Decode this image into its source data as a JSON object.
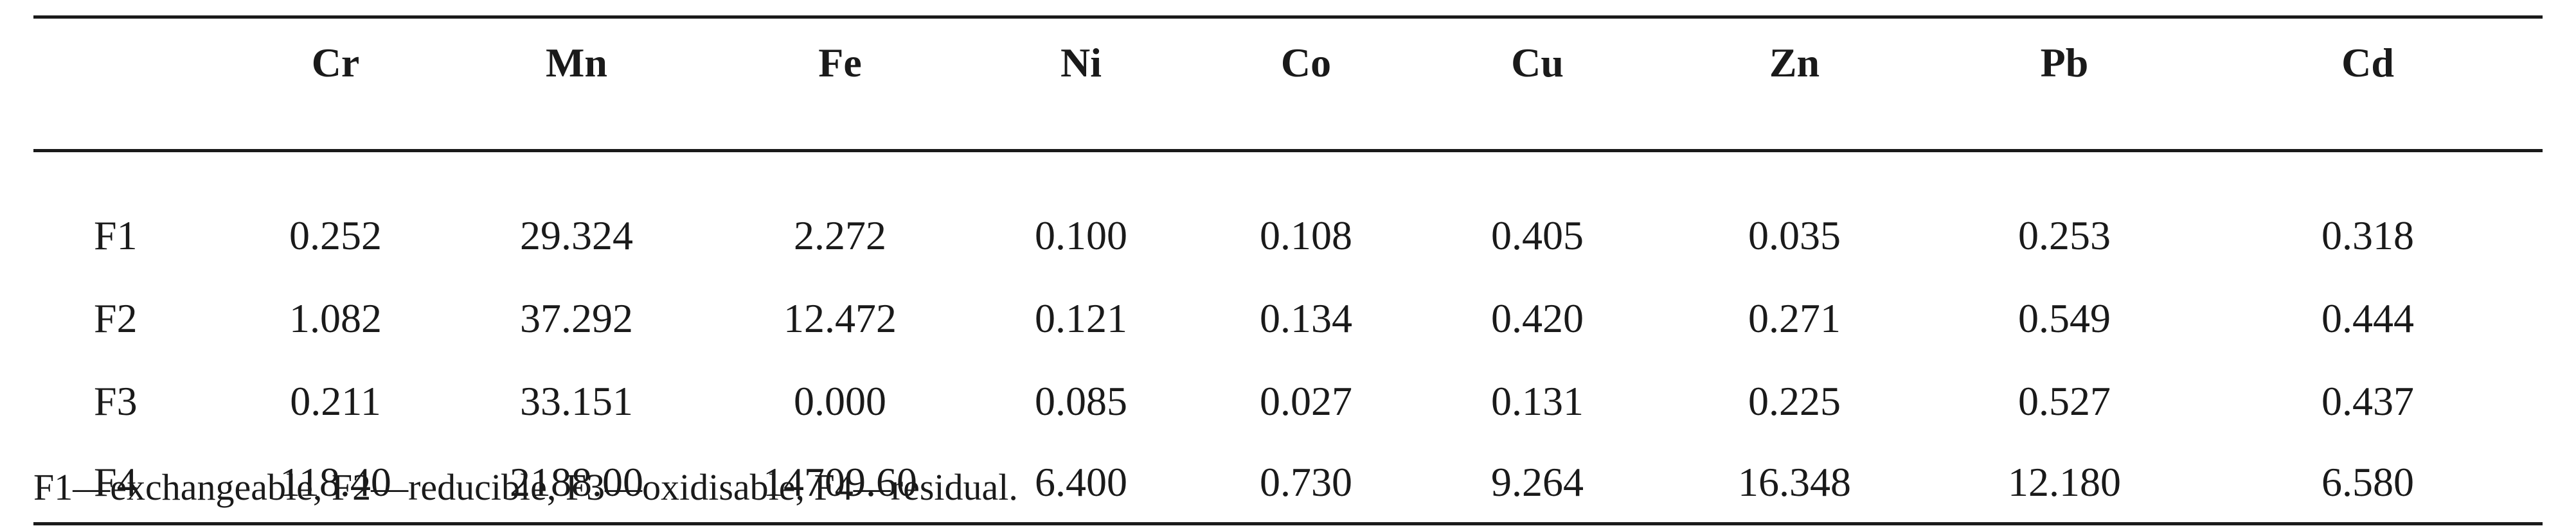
{
  "table": {
    "columns": [
      "",
      "Cr",
      "Mn",
      "Fe",
      "Ni",
      "Co",
      "Cu",
      "Zn",
      "Pb",
      "Cd"
    ],
    "rows": [
      {
        "label": "F1",
        "values": [
          "0.252",
          "29.324",
          "2.272",
          "0.100",
          "0.108",
          "0.405",
          "0.035",
          "0.253",
          "0.318"
        ]
      },
      {
        "label": "F2",
        "values": [
          "1.082",
          "37.292",
          "12.472",
          "0.121",
          "0.134",
          "0.420",
          "0.271",
          "0.549",
          "0.444"
        ]
      },
      {
        "label": "F3",
        "values": [
          "0.211",
          "33.151",
          "0.000",
          "0.085",
          "0.027",
          "0.131",
          "0.225",
          "0.527",
          "0.437"
        ]
      },
      {
        "label": "F4",
        "values": [
          "118.40",
          "2188.00",
          "14709.60",
          "6.400",
          "0.730",
          "9.264",
          "16.348",
          "12.180",
          "6.580"
        ]
      }
    ]
  },
  "footnote": "F1—exchangeable, F2—reducible, F3—oxidisable, F4—residual."
}
